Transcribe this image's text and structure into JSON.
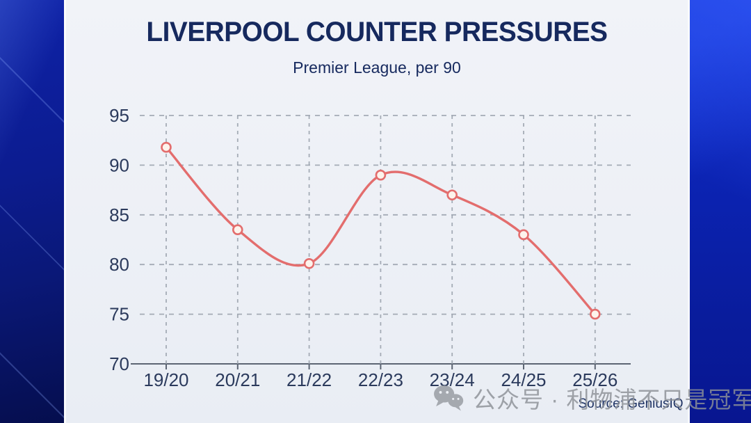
{
  "page": {
    "title": "LIVERPOOL COUNTER PRESSURES",
    "subtitle": "Premier League, per 90",
    "source": "Source: GeniusIQ",
    "watermark_text": "公众号 · 利物浦不只是冠军",
    "watermark_icon": "wechat-icon"
  },
  "colors": {
    "title": "#16295e",
    "subtitle": "#16295e",
    "axis_label": "#2b3a5c",
    "grid": "#98a0ab",
    "axis_line": "#5c6573",
    "line": "#e36d6d",
    "marker_fill": "#fdf3ec",
    "source_text": "#1e3263",
    "watermark": "#8d9197",
    "panel_bg": "#eef1f6",
    "left_bg": "#0a1878",
    "right_bg": "#0c25b8"
  },
  "chart_data": {
    "type": "line",
    "title": "LIVERPOOL COUNTER PRESSURES",
    "subtitle": "Premier League, per 90",
    "categories": [
      "19/20",
      "20/21",
      "21/22",
      "22/23",
      "23/24",
      "24/25",
      "25/26"
    ],
    "values": [
      91.8,
      83.5,
      80.1,
      89,
      87,
      83,
      75
    ],
    "xlabel": "",
    "ylabel": "",
    "ylim": [
      70,
      95
    ],
    "yticks": [
      70,
      75,
      80,
      85,
      90,
      95
    ],
    "grid": "dashed",
    "legend": "none",
    "marker": "open-circle",
    "smooth": true,
    "source": "Source: GeniusIQ"
  }
}
